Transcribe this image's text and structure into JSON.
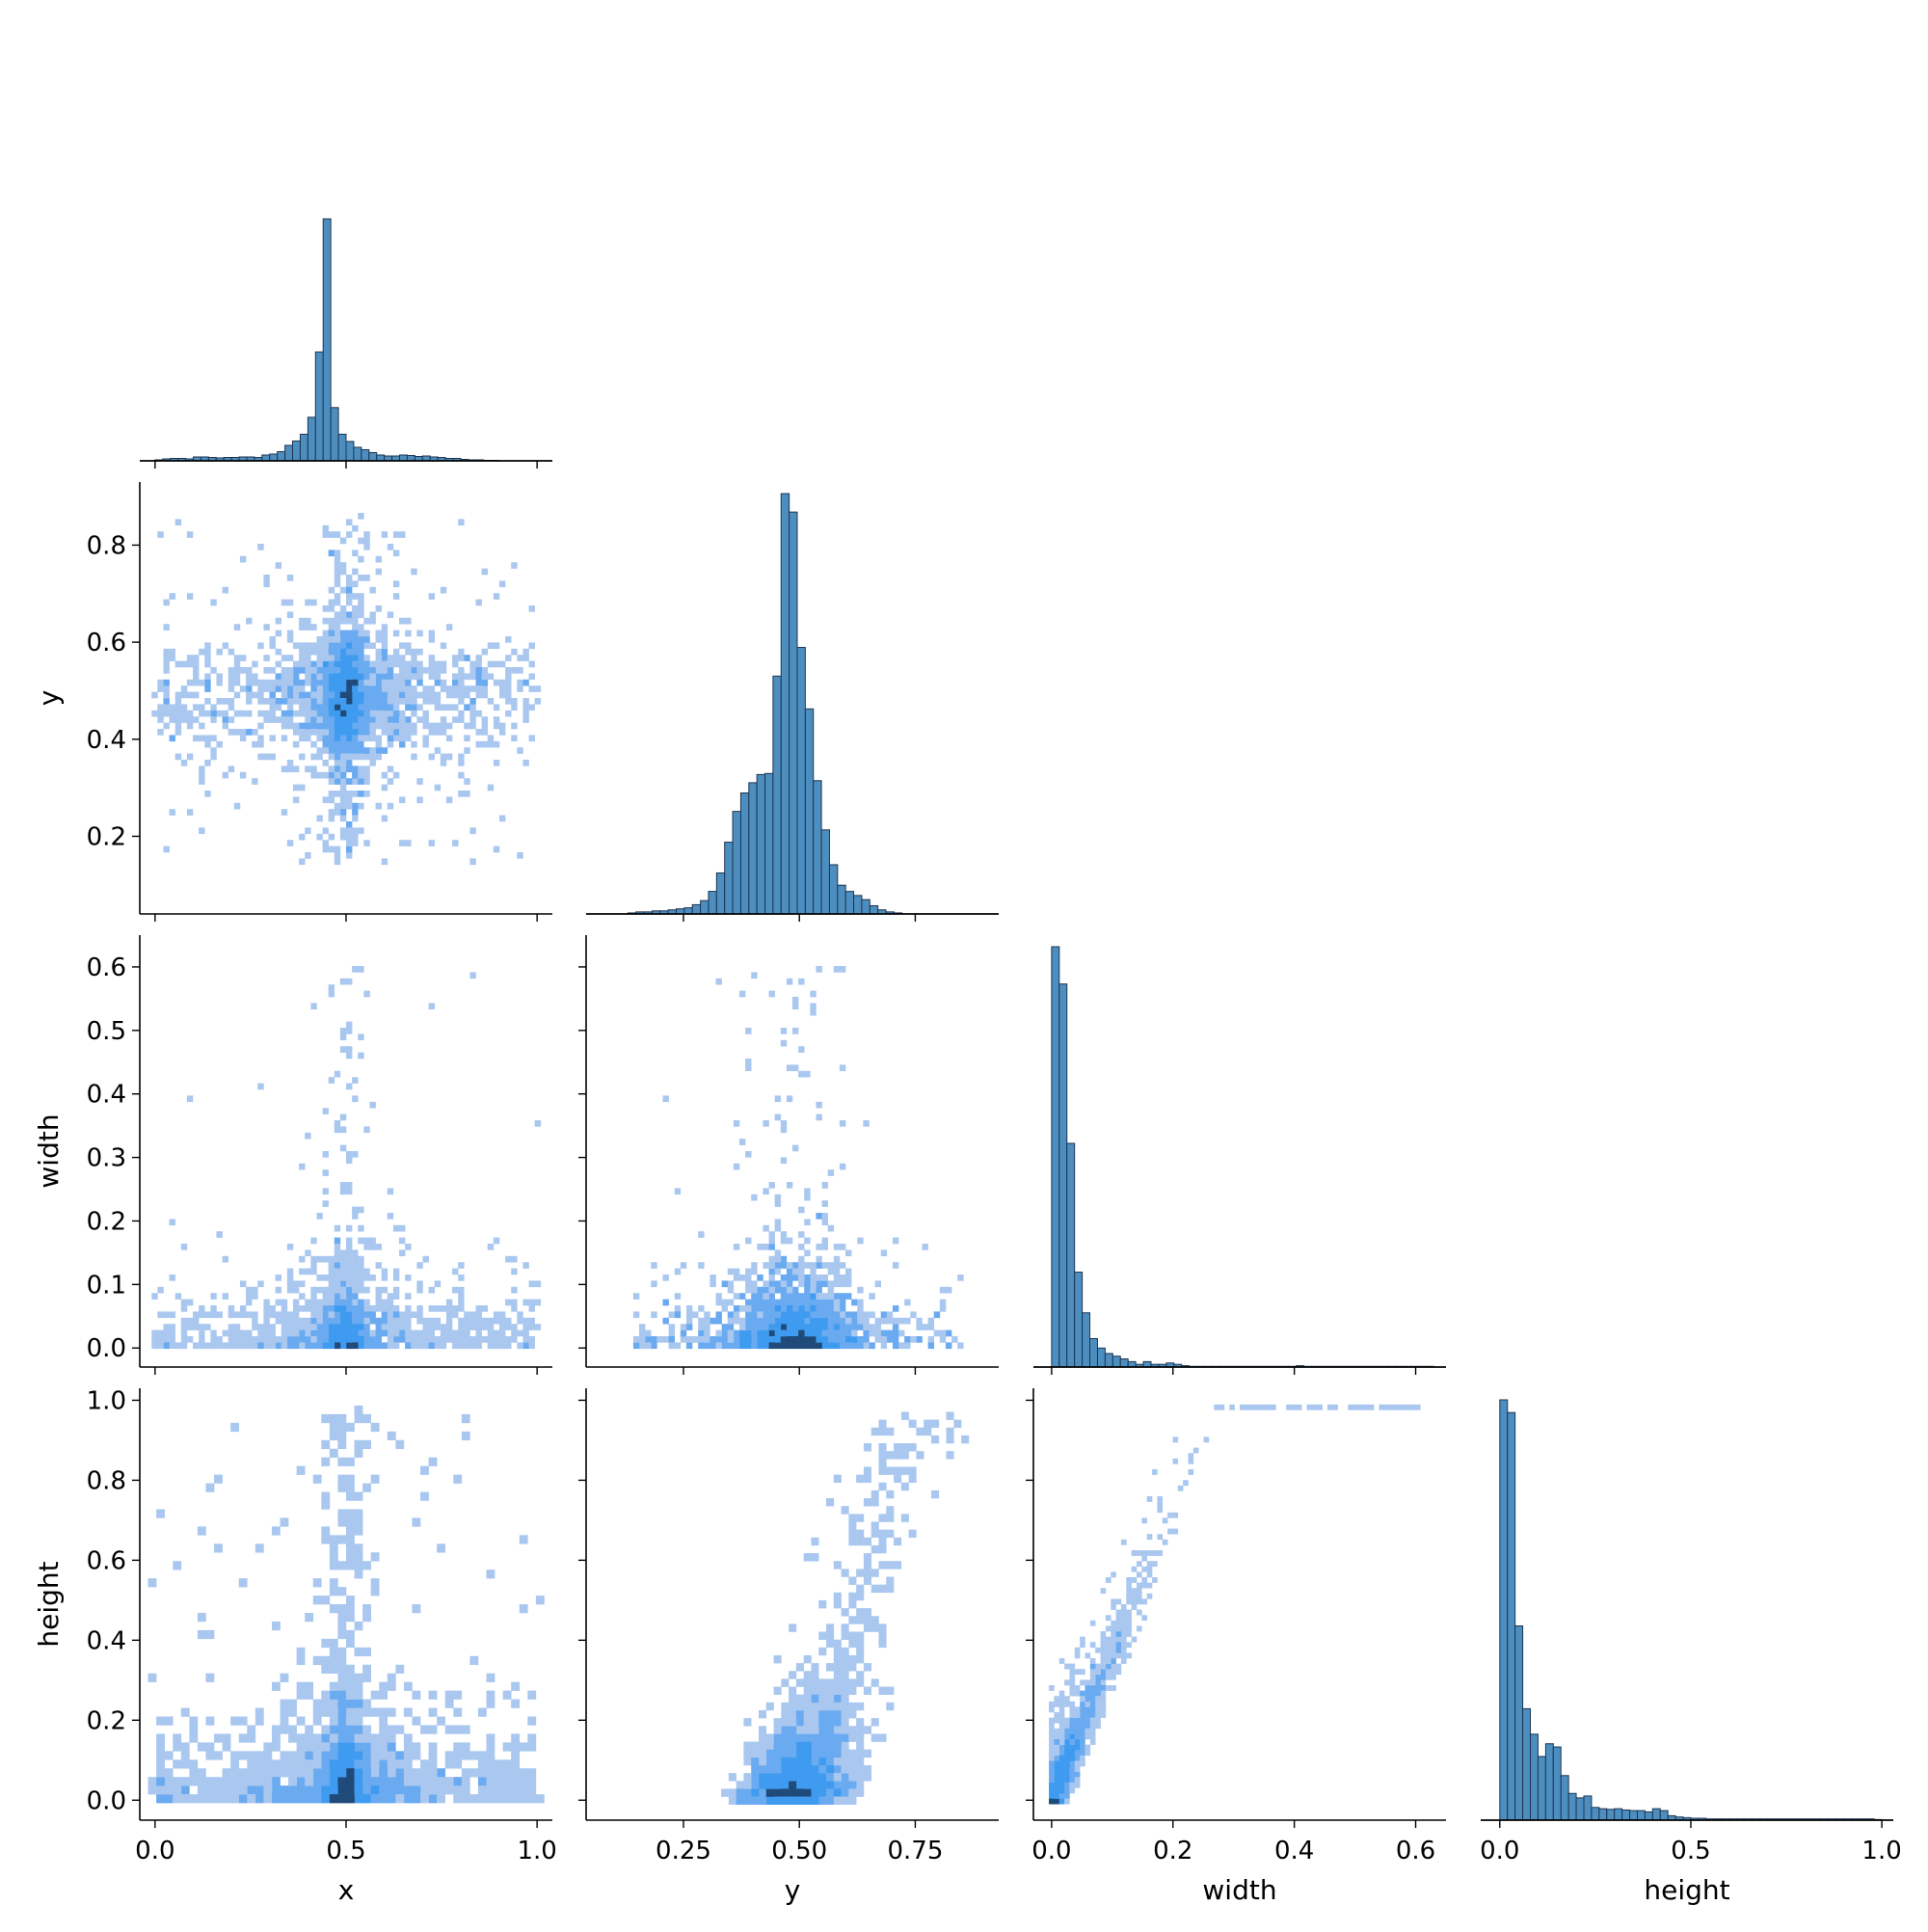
{
  "chart_data": {
    "type": "pairplot",
    "variables": [
      "x",
      "y",
      "width",
      "height"
    ],
    "layout": "corner",
    "diagonal": "histogram",
    "off_diagonal": "2d-histogram",
    "colors": {
      "hist_fill": "#4c8ebf",
      "hist_edge": "#1f3550",
      "density_low": "#aac8ef",
      "density_mid": "#3e9bf0",
      "density_high": "#1f4a7a",
      "axis": "#000000"
    },
    "axes": {
      "x": {
        "label": "x",
        "range": [
          -0.04,
          1.04
        ],
        "ticks": [
          0.0,
          0.5,
          1.0
        ],
        "tick_labels": [
          "0.0",
          "0.5",
          "1.0"
        ]
      },
      "y": {
        "label": "y",
        "range": [
          0.04,
          0.93
        ],
        "ticks_vertical": [
          0.2,
          0.4,
          0.6,
          0.8
        ],
        "tick_labels_vertical": [
          "0.2",
          "0.4",
          "0.6",
          "0.8"
        ],
        "ticks_horizontal": [
          0.25,
          0.5,
          0.75
        ],
        "tick_labels_horizontal": [
          "0.25",
          "0.50",
          "0.75"
        ]
      },
      "width": {
        "label": "width",
        "range": [
          -0.03,
          0.65
        ],
        "ticks_vertical": [
          0.0,
          0.1,
          0.2,
          0.3,
          0.4,
          0.5,
          0.6
        ],
        "tick_labels_vertical": [
          "0.0",
          "0.1",
          "0.2",
          "0.3",
          "0.4",
          "0.5",
          "0.6"
        ],
        "ticks_horizontal": [
          0.0,
          0.2,
          0.4,
          0.6
        ],
        "tick_labels_horizontal": [
          "0.0",
          "0.2",
          "0.4",
          "0.6"
        ]
      },
      "height": {
        "label": "height",
        "range": [
          -0.05,
          1.03
        ],
        "ticks_vertical": [
          0.0,
          0.2,
          0.4,
          0.6,
          0.8,
          1.0
        ],
        "tick_labels_vertical": [
          "0.0",
          "0.2",
          "0.4",
          "0.6",
          "0.8",
          "1.0"
        ],
        "ticks_horizontal": [
          0.0,
          0.5,
          1.0
        ],
        "tick_labels_horizontal": [
          "0.0",
          "0.5",
          "1.0"
        ]
      }
    },
    "histograms": {
      "x": {
        "bin_start": 0.0,
        "bin_width": 0.02,
        "counts": [
          2,
          4,
          5,
          5,
          4,
          8,
          8,
          7,
          6,
          7,
          7,
          8,
          8,
          7,
          12,
          14,
          19,
          32,
          41,
          55,
          90,
          225,
          500,
          110,
          55,
          40,
          28,
          23,
          17,
          12,
          10,
          10,
          12,
          11,
          9,
          10,
          8,
          7,
          5,
          5,
          3,
          2,
          2,
          1,
          1
        ]
      },
      "y": {
        "bin_start": 0.13,
        "bin_width": 0.0174,
        "counts": [
          1,
          2,
          2,
          3,
          3,
          4,
          5,
          6,
          9,
          13,
          22,
          40,
          70,
          100,
          118,
          128,
          136,
          137,
          232,
          410,
          392,
          260,
          200,
          130,
          82,
          48,
          28,
          22,
          18,
          14,
          8,
          4,
          2,
          1
        ]
      },
      "width": {
        "bin_start": 0.0,
        "bin_width": 0.0126,
        "counts": [
          620,
          565,
          330,
          140,
          80,
          42,
          28,
          20,
          16,
          12,
          8,
          4,
          8,
          4,
          4,
          6,
          4,
          2,
          1,
          1,
          1,
          1,
          1,
          1,
          1,
          1,
          1,
          1,
          1,
          1,
          1,
          1,
          2,
          1,
          1,
          1,
          1,
          1,
          1,
          1,
          1,
          1,
          1,
          1,
          1,
          1,
          1,
          1,
          1,
          1
        ]
      },
      "height": {
        "bin_start": 0.0,
        "bin_width": 0.02,
        "counts": [
          660,
          640,
          305,
          175,
          135,
          100,
          120,
          115,
          70,
          42,
          35,
          38,
          20,
          18,
          17,
          18,
          16,
          15,
          15,
          13,
          18,
          15,
          7,
          5,
          4,
          3,
          3,
          2,
          2,
          2,
          2,
          2,
          2,
          2,
          2,
          2,
          2,
          2,
          2,
          2,
          2,
          2,
          2,
          2,
          2,
          2,
          2,
          2,
          2,
          1
        ]
      }
    },
    "pairs": [
      {
        "x_var": "x",
        "y_var": "y",
        "description_values": {
          "peak_x": 0.5,
          "peak_y": 0.5
        }
      },
      {
        "x_var": "x",
        "y_var": "width",
        "description_values": {
          "peak_x": 0.5,
          "peak_y": 0.015
        }
      },
      {
        "x_var": "y",
        "y_var": "width",
        "description_values": {
          "peak_x": 0.5,
          "peak_y": 0.015
        }
      },
      {
        "x_var": "x",
        "y_var": "height",
        "description_values": {
          "peak_x": 0.5,
          "peak_y": 0.03
        }
      },
      {
        "x_var": "y",
        "y_var": "height",
        "description_values": {
          "peak_x": 0.48,
          "peak_y": 0.03
        }
      },
      {
        "x_var": "width",
        "y_var": "height",
        "description_values": {
          "peak_x": 0.01,
          "peak_y": 0.01
        }
      }
    ]
  }
}
